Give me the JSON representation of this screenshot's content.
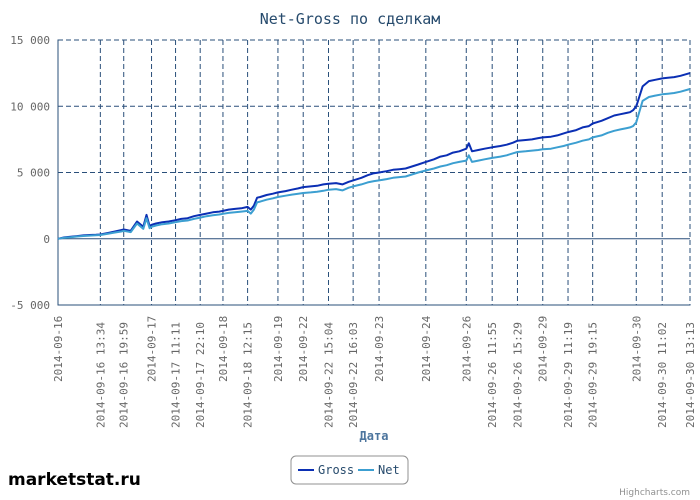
{
  "chart_data": {
    "type": "line",
    "title": "Net-Gross по сделкам",
    "xlabel": "Дата",
    "ylabel": "",
    "ylim": [
      -5000,
      15000
    ],
    "yticks": [
      -5000,
      0,
      5000,
      10000,
      15000
    ],
    "ytick_labels": [
      "-5 000",
      "0",
      "5 000",
      "10 000",
      "15 000"
    ],
    "x_categories": [
      "2014-09-16",
      "2014-09-16 13:34",
      "2014-09-16 19:59",
      "2014-09-17",
      "2014-09-17 11:11",
      "2014-09-17 22:10",
      "2014-09-18",
      "2014-09-18 12:15",
      "2014-09-19",
      "2014-09-22",
      "2014-09-22 15:04",
      "2014-09-22 16:03",
      "2014-09-23",
      "2014-09-24",
      "2014-09-26",
      "2014-09-26 11:55",
      "2014-09-26 15:29",
      "2014-09-29",
      "2014-09-29 11:19",
      "2014-09-29 19:15",
      "2014-09-30",
      "2014-09-30 11:02",
      "2014-09-30 13:13"
    ],
    "x_tick_positions": [
      0,
      0.067,
      0.104,
      0.148,
      0.186,
      0.225,
      0.261,
      0.3,
      0.348,
      0.388,
      0.428,
      0.467,
      0.508,
      0.582,
      0.646,
      0.687,
      0.727,
      0.767,
      0.807,
      0.846,
      0.915,
      0.956,
      1.0
    ],
    "x": [
      0,
      0.01,
      0.02,
      0.03,
      0.04,
      0.05,
      0.06,
      0.067,
      0.08,
      0.09,
      0.1,
      0.104,
      0.115,
      0.125,
      0.135,
      0.14,
      0.145,
      0.148,
      0.155,
      0.165,
      0.175,
      0.186,
      0.195,
      0.205,
      0.215,
      0.225,
      0.235,
      0.245,
      0.255,
      0.261,
      0.27,
      0.28,
      0.29,
      0.3,
      0.305,
      0.31,
      0.315,
      0.32,
      0.33,
      0.34,
      0.348,
      0.36,
      0.37,
      0.38,
      0.388,
      0.4,
      0.41,
      0.42,
      0.428,
      0.44,
      0.45,
      0.46,
      0.467,
      0.48,
      0.49,
      0.5,
      0.508,
      0.52,
      0.53,
      0.54,
      0.55,
      0.56,
      0.57,
      0.582,
      0.595,
      0.605,
      0.615,
      0.625,
      0.635,
      0.646,
      0.65,
      0.655,
      0.665,
      0.675,
      0.687,
      0.7,
      0.71,
      0.72,
      0.727,
      0.74,
      0.75,
      0.76,
      0.767,
      0.78,
      0.79,
      0.8,
      0.807,
      0.82,
      0.83,
      0.84,
      0.846,
      0.86,
      0.87,
      0.88,
      0.89,
      0.9,
      0.905,
      0.91,
      0.915,
      0.925,
      0.935,
      0.945,
      0.956,
      0.965,
      0.975,
      0.985,
      1.0
    ],
    "series": [
      {
        "name": "Gross",
        "color": "#0b2fb4",
        "values": [
          0,
          100,
          150,
          200,
          250,
          280,
          300,
          320,
          450,
          550,
          650,
          700,
          600,
          1300,
          900,
          1800,
          950,
          1050,
          1150,
          1250,
          1300,
          1400,
          1500,
          1550,
          1700,
          1800,
          1900,
          2000,
          2050,
          2100,
          2200,
          2250,
          2300,
          2400,
          2200,
          2500,
          3100,
          3150,
          3300,
          3400,
          3500,
          3600,
          3700,
          3800,
          3900,
          3950,
          4000,
          4100,
          4150,
          4200,
          4100,
          4300,
          4400,
          4600,
          4800,
          4950,
          5000,
          5100,
          5200,
          5250,
          5300,
          5450,
          5600,
          5800,
          6000,
          6200,
          6300,
          6500,
          6600,
          6800,
          7200,
          6600,
          6700,
          6800,
          6900,
          7000,
          7100,
          7250,
          7400,
          7450,
          7500,
          7600,
          7650,
          7700,
          7800,
          7950,
          8050,
          8200,
          8400,
          8500,
          8700,
          8900,
          9100,
          9300,
          9400,
          9500,
          9550,
          9700,
          10000,
          11500,
          11900,
          12000,
          12100,
          12150,
          12200,
          12300,
          12500
        ]
      },
      {
        "name": "Net",
        "color": "#3c9fd1",
        "values": [
          0,
          80,
          120,
          170,
          210,
          240,
          260,
          280,
          390,
          470,
          550,
          600,
          500,
          1150,
          750,
          1550,
          800,
          900,
          1000,
          1100,
          1150,
          1250,
          1330,
          1380,
          1500,
          1600,
          1700,
          1780,
          1830,
          1880,
          1950,
          2000,
          2050,
          2100,
          1900,
          2200,
          2750,
          2800,
          2950,
          3050,
          3150,
          3250,
          3330,
          3400,
          3450,
          3500,
          3550,
          3620,
          3700,
          3750,
          3650,
          3850,
          3950,
          4100,
          4250,
          4350,
          4400,
          4500,
          4600,
          4650,
          4700,
          4850,
          5000,
          5150,
          5300,
          5450,
          5550,
          5700,
          5800,
          5900,
          6300,
          5800,
          5900,
          6000,
          6100,
          6200,
          6300,
          6450,
          6550,
          6600,
          6650,
          6700,
          6750,
          6800,
          6900,
          7000,
          7100,
          7250,
          7400,
          7500,
          7650,
          7800,
          8000,
          8150,
          8250,
          8350,
          8400,
          8500,
          8800,
          10400,
          10700,
          10800,
          10900,
          10950,
          11000,
          11100,
          11300
        ]
      }
    ],
    "legend": {
      "position": "bottom-center",
      "items": [
        "Gross",
        "Net"
      ]
    },
    "grid": true
  },
  "watermark": "marketstat.ru",
  "credits": "Highcharts.com"
}
